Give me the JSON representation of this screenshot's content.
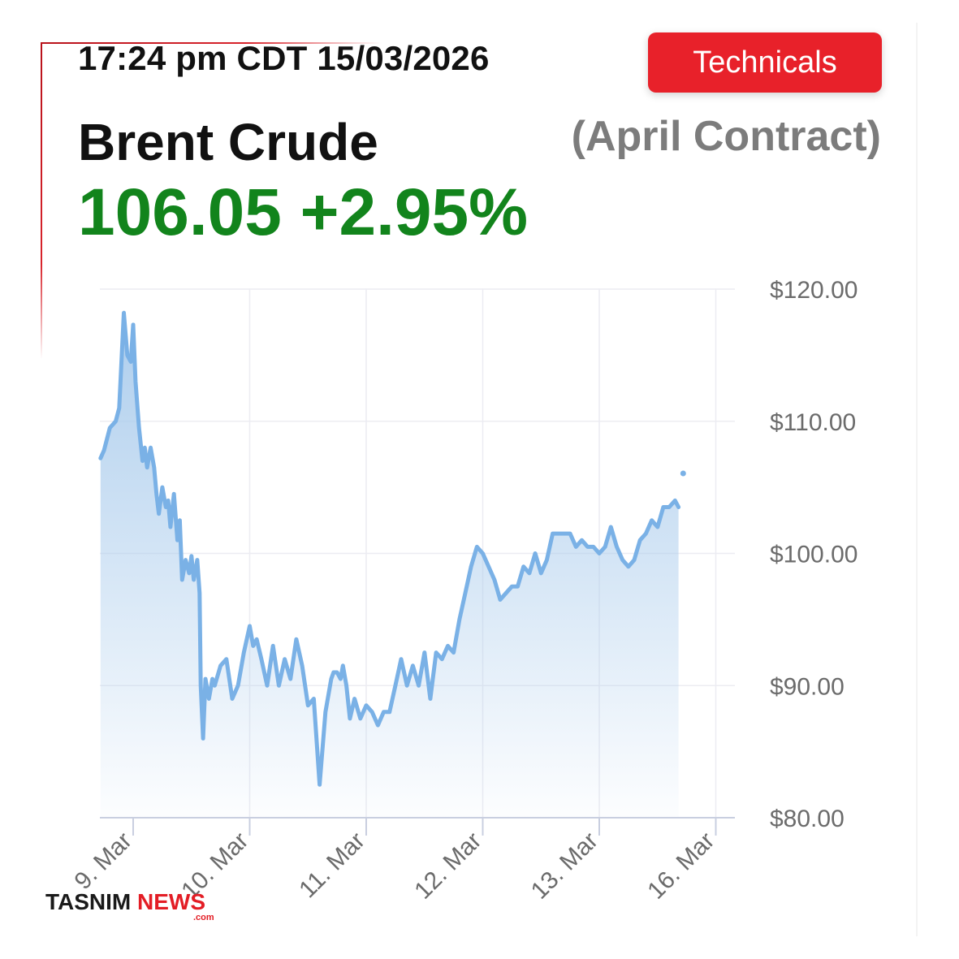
{
  "header": {
    "timestamp": "17:24 pm CDT 15/03/2026",
    "technicals_label": "Technicals",
    "title": "Brent Crude",
    "subtitle": "(April Contract)",
    "price": "106.05 +2.95%"
  },
  "colors": {
    "accent_red": "#e8212a",
    "price_green": "#12841c",
    "line_blue": "#7ab1e6",
    "area_blue": "#b4d3ee"
  },
  "logo": {
    "part1": "TASNIM ",
    "part2": "NEWS",
    "suffix": ".com"
  },
  "chart_data": {
    "type": "line",
    "title": "",
    "xlabel": "",
    "ylabel": "",
    "y_tick_labels": [
      "$120.00",
      "$110.00",
      "$100.00",
      "$90.00",
      "$80.00"
    ],
    "y_ticks": [
      120,
      110,
      100,
      90,
      80
    ],
    "ylim": [
      80,
      120
    ],
    "x_tick_labels": [
      "9. Mar",
      "10. Mar",
      "11. Mar",
      "12. Mar",
      "13. Mar",
      "16. Mar"
    ],
    "x_ticks": [
      0,
      1,
      2,
      3,
      4,
      5
    ],
    "xlim": [
      -0.28,
      5.16
    ],
    "grid": true,
    "series": [
      {
        "x": [
          -0.28,
          -0.25,
          -0.2,
          -0.15,
          -0.12,
          -0.08,
          -0.05,
          -0.02,
          0.0,
          0.02,
          0.05,
          0.08,
          0.1,
          0.12,
          0.15,
          0.18,
          0.2,
          0.22,
          0.25,
          0.28,
          0.3,
          0.32,
          0.35,
          0.38,
          0.4,
          0.42,
          0.45,
          0.48,
          0.5,
          0.52,
          0.55,
          0.57,
          0.58,
          0.6,
          0.62,
          0.65,
          0.68,
          0.7,
          0.75,
          0.8,
          0.85,
          0.9,
          0.95,
          1.0,
          1.03,
          1.06,
          1.1,
          1.15,
          1.2,
          1.25,
          1.3,
          1.35,
          1.4,
          1.45,
          1.5,
          1.55,
          1.6,
          1.65,
          1.7,
          1.72,
          1.75,
          1.78,
          1.8,
          1.83,
          1.86,
          1.9,
          1.95,
          2.0,
          2.05,
          2.1,
          2.15,
          2.2,
          2.25,
          2.3,
          2.35,
          2.4,
          2.45,
          2.5,
          2.55,
          2.6,
          2.65,
          2.7,
          2.75,
          2.8,
          2.85,
          2.9,
          2.95,
          3.0,
          3.05,
          3.1,
          3.15,
          3.2,
          3.25,
          3.3,
          3.35,
          3.4,
          3.45,
          3.5,
          3.55,
          3.6,
          3.65,
          3.7,
          3.75,
          3.8,
          3.85,
          3.9,
          3.95,
          4.0,
          4.05,
          4.1,
          4.15,
          4.2,
          4.25,
          4.3,
          4.35,
          4.4,
          4.45,
          4.5,
          4.55,
          4.6,
          4.65,
          4.68
        ],
        "values": [
          107.2,
          107.8,
          109.5,
          110.0,
          111.0,
          118.2,
          115.0,
          114.5,
          117.3,
          113.0,
          109.5,
          107.0,
          108.0,
          106.5,
          108.0,
          106.5,
          104.5,
          103.0,
          105.0,
          103.5,
          104.0,
          102.0,
          104.5,
          101.0,
          102.5,
          98.0,
          99.5,
          98.5,
          99.8,
          98.0,
          99.5,
          97.0,
          90.0,
          86.0,
          90.5,
          89.0,
          90.5,
          90.0,
          91.5,
          92.0,
          89.0,
          90.0,
          92.5,
          94.5,
          93.0,
          93.5,
          92.0,
          90.0,
          93.0,
          90.0,
          92.0,
          90.5,
          93.5,
          91.5,
          88.5,
          89.0,
          82.5,
          88.0,
          90.5,
          91.0,
          91.0,
          90.5,
          91.5,
          90.0,
          87.5,
          89.0,
          87.5,
          88.5,
          88.0,
          87.0,
          88.0,
          88.0,
          90.0,
          92.0,
          90.0,
          91.5,
          90.0,
          92.5,
          89.0,
          92.5,
          92.0,
          93.0,
          92.5,
          95.0,
          97.0,
          99.0,
          100.5,
          100.0,
          99.0,
          98.0,
          96.5,
          97.0,
          97.5,
          97.5,
          99.0,
          98.5,
          100.0,
          98.5,
          99.5,
          101.5,
          101.5,
          101.5,
          101.5,
          100.5,
          101.0,
          100.5,
          100.5,
          100.0,
          100.5,
          102.0,
          100.5,
          99.5,
          99.0,
          99.5,
          101.0,
          101.5,
          102.5,
          102.0,
          103.5,
          103.5,
          104.0,
          103.5
        ]
      }
    ],
    "last_point": {
      "x": 4.72,
      "value": 106.05
    }
  }
}
